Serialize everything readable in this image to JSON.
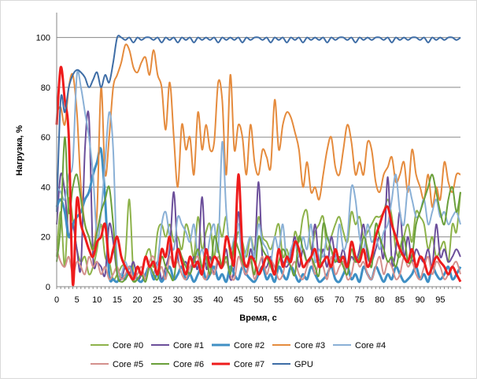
{
  "chart_data": {
    "type": "line",
    "title": "",
    "xlabel": "Время, с",
    "ylabel": "Нагрузка, %",
    "xlim": [
      0,
      100
    ],
    "ylim": [
      0,
      110
    ],
    "x_ticks": [
      0,
      5,
      10,
      15,
      20,
      25,
      30,
      35,
      40,
      45,
      50,
      55,
      60,
      65,
      70,
      75,
      80,
      85,
      90,
      95
    ],
    "y_ticks": [
      0,
      20,
      40,
      60,
      80,
      100
    ],
    "grid": "horizontal",
    "legend_position": "bottom",
    "series": [
      {
        "name": "Core #0",
        "color": "#8db24a",
        "width": 2,
        "values": [
          12,
          30,
          8,
          35,
          27,
          15,
          10,
          12,
          5,
          8,
          15,
          25,
          12,
          10,
          3,
          5,
          8,
          12,
          35,
          5,
          3,
          5,
          12,
          15,
          8,
          22,
          25,
          20,
          25,
          18,
          20,
          15,
          25,
          20,
          12,
          28,
          15,
          22,
          25,
          12,
          25,
          20,
          28,
          12,
          15,
          22,
          18,
          12,
          20,
          15,
          28,
          20,
          18,
          15,
          20,
          25,
          12,
          15,
          10,
          22,
          18,
          28,
          30,
          15,
          22,
          25,
          28,
          15,
          20,
          25,
          28,
          22,
          18,
          30,
          25,
          28,
          20,
          22,
          25,
          28,
          28,
          30,
          35,
          28,
          15,
          12,
          20,
          25,
          18,
          30,
          28,
          25,
          15,
          20,
          12,
          15,
          18,
          10,
          25,
          22,
          38
        ]
      },
      {
        "name": "Core #1",
        "color": "#6b4e9a",
        "width": 2,
        "values": [
          25,
          45,
          38,
          20,
          25,
          15,
          8,
          55,
          68,
          12,
          10,
          8,
          5,
          25,
          18,
          5,
          3,
          8,
          5,
          10,
          3,
          5,
          12,
          8,
          5,
          10,
          3,
          8,
          15,
          38,
          12,
          8,
          10,
          5,
          12,
          8,
          36,
          8,
          12,
          5,
          10,
          8,
          15,
          3,
          8,
          30,
          10,
          5,
          15,
          12,
          42,
          10,
          8,
          12,
          5,
          15,
          10,
          8,
          12,
          20,
          8,
          15,
          10,
          12,
          25,
          10,
          15,
          8,
          20,
          12,
          10,
          15,
          8,
          12,
          10,
          15,
          25,
          12,
          10,
          15,
          20,
          12,
          44,
          10,
          15,
          30,
          12,
          20,
          10,
          15,
          12,
          10,
          15,
          8,
          25,
          12,
          15,
          10,
          12,
          15,
          12
        ]
      },
      {
        "name": "Core #2",
        "color": "#3f8fc4",
        "width": 3,
        "values": [
          32,
          35,
          30,
          20,
          25,
          28,
          30,
          35,
          38,
          45,
          50,
          55,
          35,
          5,
          3,
          2,
          5,
          3,
          8,
          5,
          3,
          2,
          5,
          8,
          3,
          5,
          2,
          5,
          8,
          3,
          5,
          8,
          3,
          5,
          2,
          5,
          8,
          3,
          5,
          8,
          3,
          5,
          2,
          8,
          5,
          3,
          8,
          5,
          3,
          2,
          5,
          8,
          3,
          5,
          2,
          8,
          5,
          3,
          8,
          5,
          2,
          5,
          3,
          8,
          5,
          2,
          3,
          5,
          8,
          3,
          2,
          5,
          8,
          3,
          5,
          2,
          8,
          5,
          3,
          8,
          5,
          2,
          5,
          3,
          8,
          5,
          2,
          3,
          5,
          8,
          3,
          5,
          2,
          8,
          5,
          3,
          5,
          8,
          3,
          5,
          8
        ]
      },
      {
        "name": "Core #3",
        "color": "#e58b3d",
        "width": 2,
        "values": [
          70,
          72,
          65,
          80,
          85,
          70,
          40,
          25,
          20,
          15,
          30,
          80,
          45,
          60,
          80,
          85,
          90,
          97,
          95,
          88,
          86,
          90,
          92,
          85,
          95,
          85,
          80,
          63,
          82,
          60,
          40,
          65,
          55,
          60,
          45,
          70,
          55,
          65,
          55,
          58,
          82,
          75,
          45,
          85,
          55,
          65,
          60,
          45,
          65,
          50,
          45,
          55,
          52,
          48,
          75,
          55,
          65,
          70,
          68,
          62,
          55,
          40,
          50,
          38,
          40,
          35,
          45,
          55,
          60,
          48,
          45,
          55,
          65,
          58,
          45,
          50,
          45,
          58,
          55,
          42,
          38,
          45,
          48,
          52,
          42,
          45,
          50,
          38,
          55,
          45,
          40,
          35,
          45,
          32,
          40,
          35,
          50,
          42,
          38,
          45,
          45
        ]
      },
      {
        "name": "Core #4",
        "color": "#8ab0d6",
        "width": 2,
        "values": [
          40,
          38,
          35,
          45,
          50,
          85,
          80,
          70,
          60,
          45,
          20,
          30,
          50,
          70,
          55,
          8,
          5,
          10,
          5,
          3,
          8,
          5,
          12,
          8,
          5,
          10,
          25,
          30,
          20,
          15,
          28,
          25,
          22,
          18,
          25,
          12,
          15,
          10,
          20,
          25,
          15,
          58,
          30,
          15,
          20,
          25,
          10,
          15,
          20,
          12,
          25,
          18,
          15,
          10,
          20,
          15,
          25,
          10,
          15,
          18,
          12,
          20,
          15,
          25,
          10,
          15,
          12,
          20,
          15,
          10,
          25,
          15,
          20,
          40,
          35,
          20,
          15,
          25,
          18,
          20,
          15,
          22,
          25,
          35,
          45,
          30,
          25,
          40,
          35,
          28,
          30,
          35,
          25,
          30,
          35,
          28,
          30,
          25,
          28,
          30,
          25
        ]
      },
      {
        "name": "Core #5",
        "color": "#d4908d",
        "width": 2,
        "values": [
          15,
          10,
          8,
          12,
          5,
          10,
          8,
          5,
          12,
          8,
          10,
          5,
          8,
          3,
          5,
          8,
          3,
          5,
          8,
          3,
          5,
          8,
          3,
          10,
          12,
          5,
          8,
          3,
          12,
          8,
          10,
          5,
          3,
          8,
          10,
          12,
          5,
          3,
          8,
          5,
          12,
          8,
          10,
          5,
          3,
          12,
          8,
          5,
          10,
          3,
          8,
          12,
          5,
          10,
          8,
          3,
          5,
          12,
          8,
          10,
          5,
          3,
          8,
          12,
          5,
          10,
          8,
          3,
          12,
          5,
          8,
          10,
          3,
          5,
          12,
          8,
          10,
          5,
          3,
          8,
          12,
          5,
          10,
          8,
          3,
          5,
          12,
          8,
          10,
          5,
          3,
          8,
          12,
          5,
          10,
          8,
          3,
          5,
          8,
          10,
          5
        ]
      },
      {
        "name": "Core #6",
        "color": "#6a9f3a",
        "width": 2,
        "values": [
          10,
          25,
          60,
          30,
          40,
          45,
          35,
          25,
          20,
          15,
          22,
          30,
          35,
          40,
          25,
          5,
          2,
          3,
          5,
          2,
          3,
          5,
          2,
          8,
          5,
          3,
          12,
          8,
          5,
          3,
          15,
          12,
          8,
          5,
          10,
          15,
          8,
          12,
          5,
          20,
          15,
          8,
          12,
          5,
          18,
          15,
          10,
          8,
          12,
          5,
          20,
          15,
          12,
          8,
          5,
          10,
          15,
          12,
          8,
          5,
          20,
          15,
          10,
          12,
          8,
          5,
          25,
          20,
          15,
          10,
          12,
          8,
          5,
          15,
          10,
          12,
          20,
          15,
          8,
          25,
          20,
          15,
          10,
          12,
          8,
          15,
          20,
          10,
          12,
          25,
          30,
          35,
          40,
          45,
          38,
          30,
          25,
          35,
          40,
          30,
          38
        ]
      },
      {
        "name": "Core #7",
        "color": "#ee1c1c",
        "width": 3,
        "values": [
          65,
          88,
          75,
          60,
          1,
          35,
          25,
          20,
          15,
          12,
          18,
          20,
          25,
          10,
          15,
          20,
          12,
          8,
          5,
          3,
          8,
          5,
          12,
          8,
          10,
          5,
          15,
          12,
          20,
          8,
          15,
          10,
          5,
          12,
          8,
          10,
          5,
          15,
          8,
          12,
          10,
          8,
          20,
          15,
          10,
          45,
          15,
          8,
          12,
          10,
          5,
          8,
          12,
          10,
          5,
          15,
          8,
          12,
          10,
          18,
          15,
          8,
          10,
          12,
          15,
          8,
          10,
          12,
          8,
          15,
          10,
          12,
          8,
          18,
          12,
          10,
          15,
          8,
          12,
          20,
          25,
          30,
          32,
          25,
          20,
          15,
          12,
          10,
          15,
          8,
          12,
          10,
          5,
          8,
          12,
          10,
          8,
          5,
          8,
          5,
          2
        ]
      },
      {
        "name": "GPU",
        "color": "#3e6da6",
        "width": 2,
        "values": [
          30,
          75,
          70,
          80,
          85,
          87,
          86,
          84,
          80,
          83,
          86,
          80,
          85,
          82,
          90,
          100,
          100,
          99,
          100,
          98,
          100,
          99,
          100,
          100,
          99,
          100,
          98,
          100,
          99,
          100,
          98,
          100,
          99,
          100,
          98,
          100,
          99,
          100,
          99,
          100,
          98,
          100,
          99,
          100,
          99,
          100,
          98,
          100,
          99,
          100,
          100,
          99,
          100,
          98,
          100,
          99,
          100,
          98,
          100,
          99,
          100,
          98,
          100,
          99,
          100,
          99,
          100,
          98,
          100,
          99,
          100,
          100,
          99,
          100,
          98,
          100,
          99,
          100,
          99,
          100,
          100,
          99,
          100,
          98,
          100,
          99,
          100,
          99,
          100,
          100,
          99,
          100,
          98,
          100,
          99,
          100,
          99,
          100,
          100,
          99,
          100
        ]
      }
    ]
  }
}
